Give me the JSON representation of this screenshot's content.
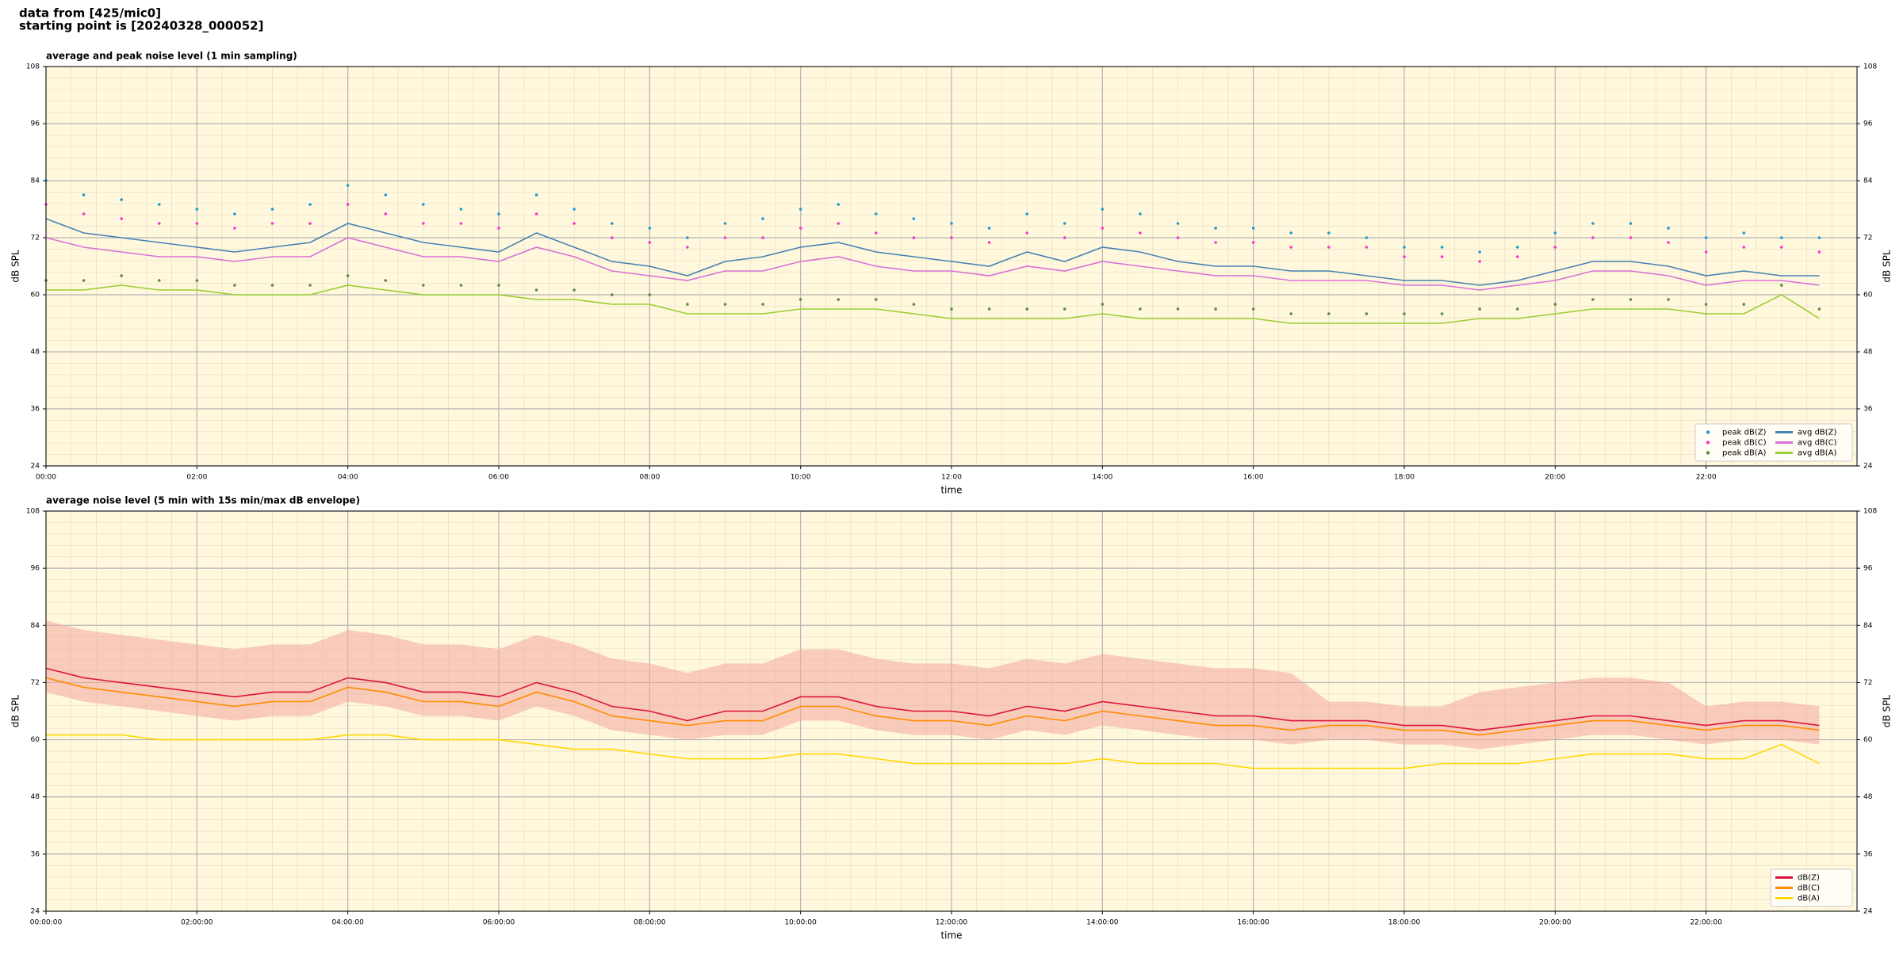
{
  "header": {
    "lines": [
      "data from [425/mic0]",
      "starting point is [20240328_000052]"
    ]
  },
  "chart_data": [
    {
      "type": "line",
      "title": "average and peak noise level (1 min sampling)",
      "xlabel": "time",
      "ylabel": "dB SPL",
      "x": [
        0,
        0.5,
        1,
        1.5,
        2,
        2.5,
        3,
        3.5,
        4,
        4.5,
        5,
        5.5,
        6,
        6.5,
        7,
        7.5,
        8,
        8.5,
        9,
        9.5,
        10,
        10.5,
        11,
        11.5,
        12,
        12.5,
        13,
        13.5,
        14,
        14.5,
        15,
        15.5,
        16,
        16.5,
        17,
        17.5,
        18,
        18.5,
        19,
        19.5,
        20,
        20.5,
        21,
        21.5,
        22,
        22.5,
        23,
        23.5
      ],
      "xlim": [
        0,
        24
      ],
      "xticks": [
        {
          "value": 0,
          "label": "00:00"
        },
        {
          "value": 2,
          "label": "02:00"
        },
        {
          "value": 4,
          "label": "04:00"
        },
        {
          "value": 6,
          "label": "06:00"
        },
        {
          "value": 8,
          "label": "08:00"
        },
        {
          "value": 10,
          "label": "10:00"
        },
        {
          "value": 12,
          "label": "12:00"
        },
        {
          "value": 14,
          "label": "14:00"
        },
        {
          "value": 16,
          "label": "16:00"
        },
        {
          "value": 18,
          "label": "18:00"
        },
        {
          "value": 20,
          "label": "20:00"
        },
        {
          "value": 22,
          "label": "22:00"
        }
      ],
      "ylim": [
        24,
        108
      ],
      "yticks": [
        24,
        36,
        48,
        60,
        72,
        84,
        96,
        108
      ],
      "grid": true,
      "legend": "lower right",
      "legend_columns": 2,
      "series": [
        {
          "name": "peak dB(Z)",
          "type": "scatter",
          "color": "#1f9bd1",
          "values": [
            84,
            81,
            80,
            79,
            78,
            77,
            78,
            79,
            83,
            81,
            79,
            78,
            77,
            81,
            78,
            75,
            74,
            72,
            75,
            76,
            78,
            79,
            77,
            76,
            75,
            74,
            77,
            75,
            78,
            77,
            75,
            74,
            74,
            73,
            73,
            72,
            70,
            70,
            69,
            70,
            73,
            75,
            75,
            74,
            72,
            73,
            72,
            72
          ]
        },
        {
          "name": "peak dB(C)",
          "type": "scatter",
          "color": "#ff33cc",
          "values": [
            79,
            77,
            76,
            75,
            75,
            74,
            75,
            75,
            79,
            77,
            75,
            75,
            74,
            77,
            75,
            72,
            71,
            70,
            72,
            72,
            74,
            75,
            73,
            72,
            72,
            71,
            73,
            72,
            74,
            73,
            72,
            71,
            71,
            70,
            70,
            70,
            68,
            68,
            67,
            68,
            70,
            72,
            72,
            71,
            69,
            70,
            70,
            69
          ]
        },
        {
          "name": "peak dB(A)",
          "type": "scatter",
          "color": "#5a8a3a",
          "values": [
            63,
            63,
            64,
            63,
            63,
            62,
            62,
            62,
            64,
            63,
            62,
            62,
            62,
            61,
            61,
            60,
            60,
            58,
            58,
            58,
            59,
            59,
            59,
            58,
            57,
            57,
            57,
            57,
            58,
            57,
            57,
            57,
            57,
            56,
            56,
            56,
            56,
            56,
            57,
            57,
            58,
            59,
            59,
            59,
            58,
            58,
            62,
            57
          ]
        },
        {
          "name": "avg dB(Z)",
          "type": "line",
          "color": "#4682b4",
          "values": [
            76,
            73,
            72,
            71,
            70,
            69,
            70,
            71,
            75,
            73,
            71,
            70,
            69,
            73,
            70,
            67,
            66,
            64,
            67,
            68,
            70,
            71,
            69,
            68,
            67,
            66,
            69,
            67,
            70,
            69,
            67,
            66,
            66,
            65,
            65,
            64,
            63,
            63,
            62,
            63,
            65,
            67,
            67,
            66,
            64,
            65,
            64,
            64
          ]
        },
        {
          "name": "avg dB(C)",
          "type": "line",
          "color": "#da70d6",
          "values": [
            72,
            70,
            69,
            68,
            68,
            67,
            68,
            68,
            72,
            70,
            68,
            68,
            67,
            70,
            68,
            65,
            64,
            63,
            65,
            65,
            67,
            68,
            66,
            65,
            65,
            64,
            66,
            65,
            67,
            66,
            65,
            64,
            64,
            63,
            63,
            63,
            62,
            62,
            61,
            62,
            63,
            65,
            65,
            64,
            62,
            63,
            63,
            62
          ]
        },
        {
          "name": "avg dB(A)",
          "type": "line",
          "color": "#9acd32",
          "values": [
            61,
            61,
            62,
            61,
            61,
            60,
            60,
            60,
            62,
            61,
            60,
            60,
            60,
            59,
            59,
            58,
            58,
            56,
            56,
            56,
            57,
            57,
            57,
            56,
            55,
            55,
            55,
            55,
            56,
            55,
            55,
            55,
            55,
            54,
            54,
            54,
            54,
            54,
            55,
            55,
            56,
            57,
            57,
            57,
            56,
            56,
            60,
            55
          ]
        }
      ]
    },
    {
      "type": "line",
      "title": "average noise level (5 min with 15s min/max dB envelope)",
      "xlabel": "time",
      "ylabel": "dB SPL",
      "x": [
        0,
        0.5,
        1,
        1.5,
        2,
        2.5,
        3,
        3.5,
        4,
        4.5,
        5,
        5.5,
        6,
        6.5,
        7,
        7.5,
        8,
        8.5,
        9,
        9.5,
        10,
        10.5,
        11,
        11.5,
        12,
        12.5,
        13,
        13.5,
        14,
        14.5,
        15,
        15.5,
        16,
        16.5,
        17,
        17.5,
        18,
        18.5,
        19,
        19.5,
        20,
        20.5,
        21,
        21.5,
        22,
        22.5,
        23,
        23.5
      ],
      "xlim": [
        0,
        24
      ],
      "xticks": [
        {
          "value": 0,
          "label": "00:00:00"
        },
        {
          "value": 2,
          "label": "02:00:00"
        },
        {
          "value": 4,
          "label": "04:00:00"
        },
        {
          "value": 6,
          "label": "06:00:00"
        },
        {
          "value": 8,
          "label": "08:00:00"
        },
        {
          "value": 10,
          "label": "10:00:00"
        },
        {
          "value": 12,
          "label": "12:00:00"
        },
        {
          "value": 14,
          "label": "14:00:00"
        },
        {
          "value": 16,
          "label": "16:00:00"
        },
        {
          "value": 18,
          "label": "18:00:00"
        },
        {
          "value": 20,
          "label": "20:00:00"
        },
        {
          "value": 22,
          "label": "22:00:00"
        }
      ],
      "ylim": [
        24,
        108
      ],
      "yticks": [
        24,
        36,
        48,
        60,
        72,
        84,
        96,
        108
      ],
      "grid": true,
      "legend": "lower right",
      "legend_columns": 1,
      "envelope": {
        "color": "#f4a6a0",
        "low": [
          70,
          68,
          67,
          66,
          65,
          64,
          65,
          65,
          68,
          67,
          65,
          65,
          64,
          67,
          65,
          62,
          61,
          60,
          61,
          61,
          64,
          64,
          62,
          61,
          61,
          60,
          62,
          61,
          63,
          62,
          61,
          60,
          60,
          59,
          60,
          60,
          59,
          59,
          58,
          59,
          60,
          61,
          61,
          60,
          59,
          60,
          60,
          59
        ],
        "high": [
          85,
          83,
          82,
          81,
          80,
          79,
          80,
          80,
          83,
          82,
          80,
          80,
          79,
          82,
          80,
          77,
          76,
          74,
          76,
          76,
          79,
          79,
          77,
          76,
          76,
          75,
          77,
          76,
          78,
          77,
          76,
          75,
          75,
          74,
          68,
          68,
          67,
          67,
          70,
          71,
          72,
          73,
          73,
          72,
          67,
          68,
          68,
          67
        ]
      },
      "series": [
        {
          "name": "dB(Z)",
          "type": "line",
          "color": "#dc143c",
          "values": [
            75,
            73,
            72,
            71,
            70,
            69,
            70,
            70,
            73,
            72,
            70,
            70,
            69,
            72,
            70,
            67,
            66,
            64,
            66,
            66,
            69,
            69,
            67,
            66,
            66,
            65,
            67,
            66,
            68,
            67,
            66,
            65,
            65,
            64,
            64,
            64,
            63,
            63,
            62,
            63,
            64,
            65,
            65,
            64,
            63,
            64,
            64,
            63
          ]
        },
        {
          "name": "dB(C)",
          "type": "line",
          "color": "#ff8c00",
          "values": [
            73,
            71,
            70,
            69,
            68,
            67,
            68,
            68,
            71,
            70,
            68,
            68,
            67,
            70,
            68,
            65,
            64,
            63,
            64,
            64,
            67,
            67,
            65,
            64,
            64,
            63,
            65,
            64,
            66,
            65,
            64,
            63,
            63,
            62,
            63,
            63,
            62,
            62,
            61,
            62,
            63,
            64,
            64,
            63,
            62,
            63,
            63,
            62
          ]
        },
        {
          "name": "dB(A)",
          "type": "line",
          "color": "#ffd700",
          "values": [
            61,
            61,
            61,
            60,
            60,
            60,
            60,
            60,
            61,
            61,
            60,
            60,
            60,
            59,
            58,
            58,
            57,
            56,
            56,
            56,
            57,
            57,
            56,
            55,
            55,
            55,
            55,
            55,
            56,
            55,
            55,
            55,
            54,
            54,
            54,
            54,
            54,
            55,
            55,
            55,
            56,
            57,
            57,
            57,
            56,
            56,
            59,
            55
          ]
        }
      ]
    }
  ]
}
